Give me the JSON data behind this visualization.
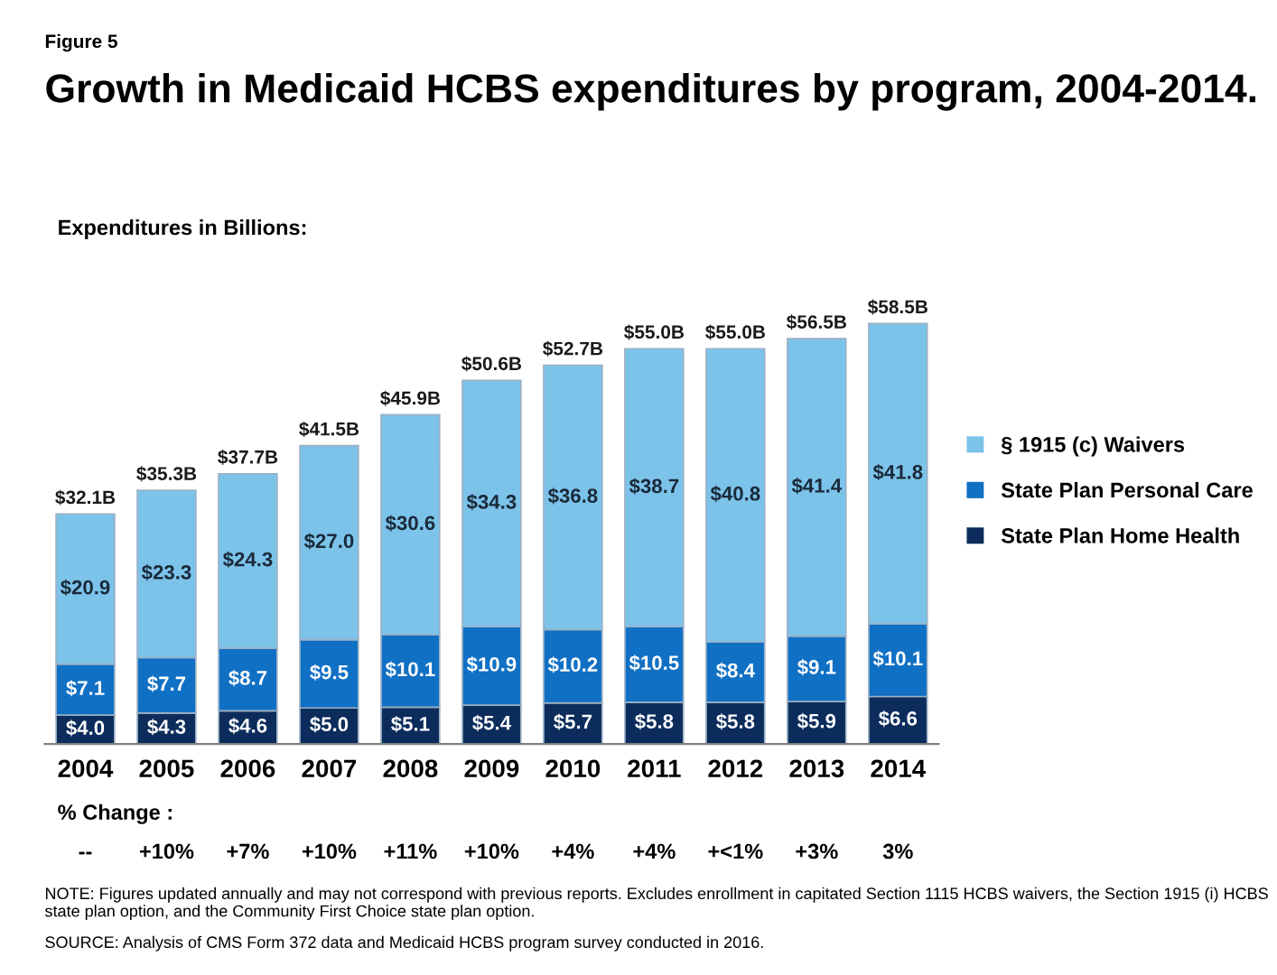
{
  "chart_data": {
    "type": "bar",
    "stacked": true,
    "title": "Growth in Medicaid HCBS expenditures by program, 2004-2014.",
    "subtitle": "Expenditures in Billions:",
    "categories": [
      "2004",
      "2005",
      "2006",
      "2007",
      "2008",
      "2009",
      "2010",
      "2011",
      "2012",
      "2013",
      "2014"
    ],
    "series": [
      {
        "name": "State Plan Home Health",
        "color": "#0c2d5c",
        "values": [
          4.0,
          4.3,
          4.6,
          5.0,
          5.1,
          5.4,
          5.7,
          5.8,
          5.8,
          5.9,
          6.6
        ],
        "value_labels": [
          "$4.0",
          "$4.3",
          "$4.6",
          "$5.0",
          "$5.1",
          "$5.4",
          "$5.7",
          "$5.8",
          "$5.8",
          "$5.9",
          "$6.6"
        ]
      },
      {
        "name": "State Plan Personal Care",
        "color": "#1070c4",
        "values": [
          7.1,
          7.7,
          8.7,
          9.5,
          10.1,
          10.9,
          10.2,
          10.5,
          8.4,
          9.1,
          10.1
        ],
        "value_labels": [
          "$7.1",
          "$7.7",
          "$8.7",
          "$9.5",
          "$10.1",
          "$10.9",
          "$10.2",
          "$10.5",
          "$8.4",
          "$9.1",
          "$10.1"
        ]
      },
      {
        "name": "§ 1915 (c) Waivers",
        "color": "#7cc3ea",
        "values": [
          20.9,
          23.3,
          24.3,
          27.0,
          30.6,
          34.3,
          36.8,
          38.7,
          40.8,
          41.4,
          41.8
        ],
        "value_labels": [
          "$20.9",
          "$23.3",
          "$24.3",
          "$27.0",
          "$30.6",
          "$34.3",
          "$36.8",
          "$38.7",
          "$40.8",
          "$41.4",
          "$41.8"
        ]
      }
    ],
    "totals": [
      "$32.1B",
      "$35.3B",
      "$37.7B",
      "$41.5B",
      "$45.9B",
      "$50.6B",
      "$52.7B",
      "$55.0B",
      "$55.0B",
      "$56.5B",
      "$58.5B"
    ],
    "legend": "right",
    "annotations": [
      "Figure 5",
      "% Change :",
      "--",
      "+10%",
      "+7%",
      "+10%",
      "+11%",
      "+10%",
      "+4%",
      "+4%",
      "+<1%",
      "+3%",
      "3%",
      "NOTE: Figures updated annually and may not correspond with previous reports. Excludes enrollment in capitated Section 1115 HCBS waivers, the Section 1915 (i) HCBS state plan option, and the Community First Choice state plan option.",
      "SOURCE: Analysis of CMS Form 372 data and Medicaid HCBS program survey conducted in 2016."
    ]
  }
}
